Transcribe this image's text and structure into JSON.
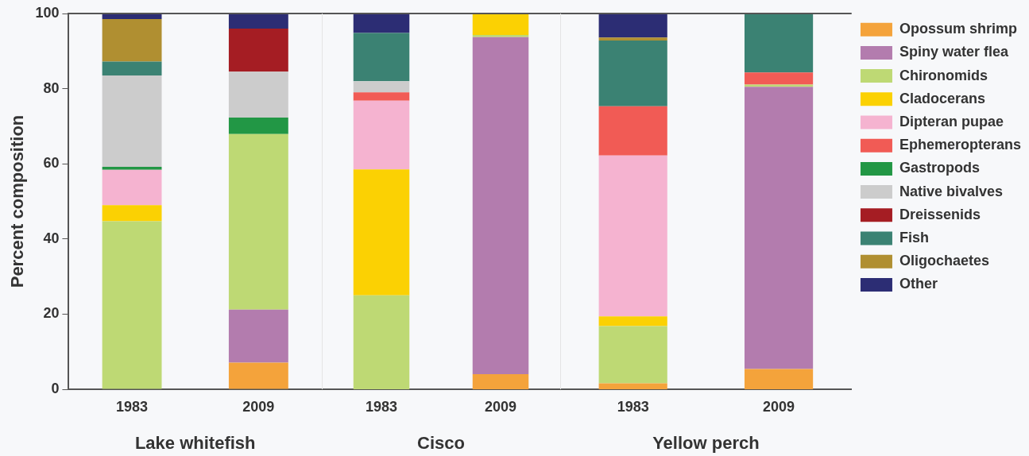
{
  "chart_data": [
    {
      "type": "bar",
      "stacked": true,
      "xlabel": "Lake whitefish",
      "ylabel": "Percent composition",
      "categories": [
        "1983",
        "2009"
      ],
      "ylim": [
        0,
        100
      ],
      "yticks": [
        0,
        20,
        40,
        60,
        80,
        100
      ],
      "grid": false,
      "legend": false,
      "series": [
        {
          "color": "#f4a33b",
          "values": [
            null,
            7.1
          ]
        },
        {
          "color": "#b37cae",
          "values": [
            null,
            14.1
          ]
        },
        {
          "color": "#bed974",
          "values": [
            44.7,
            46.7
          ]
        },
        {
          "color": "#fbd103",
          "values": [
            4.3,
            null
          ]
        },
        {
          "color": "#f5b3d0",
          "values": [
            9.4,
            null
          ]
        },
        {
          "color": "#f15b55",
          "values": [
            null,
            null
          ]
        },
        {
          "color": "#229745",
          "values": [
            0.8,
            4.4
          ]
        },
        {
          "color": "#cccccc",
          "values": [
            24.3,
            12.2
          ]
        },
        {
          "color": "#a51d23",
          "values": [
            null,
            11.5
          ]
        },
        {
          "color": "#3b8273",
          "values": [
            3.7,
            null
          ]
        },
        {
          "color": "#b08f31",
          "values": [
            11.3,
            null
          ]
        },
        {
          "color": "#2c2d74",
          "values": [
            1.5,
            4.0
          ]
        }
      ]
    },
    {
      "type": "bar",
      "stacked": true,
      "xlabel": "Cisco",
      "categories": [
        "1983",
        "2009"
      ],
      "ylim": [
        0,
        100
      ],
      "yticks": [
        0,
        20,
        40,
        60,
        80,
        100
      ],
      "tick_labels": "x",
      "grid": false,
      "legend": false,
      "series": [
        {
          "color": "#f4a33b",
          "values": [
            null,
            4.0
          ]
        },
        {
          "color": "#b37cae",
          "values": [
            null,
            89.7
          ]
        },
        {
          "color": "#bed974",
          "values": [
            25.0,
            0.6
          ]
        },
        {
          "color": "#fbd103",
          "values": [
            33.5,
            5.7
          ]
        },
        {
          "color": "#f5b3d0",
          "values": [
            18.3,
            null
          ]
        },
        {
          "color": "#f15b55",
          "values": [
            2.2,
            null
          ]
        },
        {
          "color": "#229745",
          "values": [
            null,
            null
          ]
        },
        {
          "color": "#cccccc",
          "values": [
            3.0,
            null
          ]
        },
        {
          "color": "#a51d23",
          "values": [
            null,
            null
          ]
        },
        {
          "color": "#3b8273",
          "values": [
            12.8,
            null
          ]
        },
        {
          "color": "#b08f31",
          "values": [
            null,
            null
          ]
        },
        {
          "color": "#2c2d74",
          "values": [
            5.2,
            null
          ]
        }
      ]
    },
    {
      "type": "bar",
      "stacked": true,
      "xlabel": "Yellow perch",
      "categories": [
        "1983",
        "2009"
      ],
      "ylim": [
        0,
        100
      ],
      "yticks": [
        0,
        20,
        40,
        60,
        80,
        100
      ],
      "tick_labels": "x",
      "grid": false,
      "legend": "right",
      "series": [
        {
          "name": "Opossum shrimp",
          "color": "#f4a33b",
          "values": [
            1.6,
            5.4
          ]
        },
        {
          "name": "Spiny water flea",
          "color": "#b37cae",
          "values": [
            null,
            75.1
          ]
        },
        {
          "name": "Chironomids",
          "color": "#bed974",
          "values": [
            15.2,
            0.6
          ]
        },
        {
          "name": "Cladocerans",
          "color": "#fbd103",
          "values": [
            2.6,
            null
          ]
        },
        {
          "name": "Dipteran pupae",
          "color": "#f5b3d0",
          "values": [
            42.8,
            null
          ]
        },
        {
          "name": "Ephemeropterans",
          "color": "#f15b55",
          "values": [
            13.1,
            3.2
          ]
        },
        {
          "name": "Gastropods",
          "color": "#229745",
          "values": [
            null,
            null
          ]
        },
        {
          "name": "Native bivalves",
          "color": "#cccccc",
          "values": [
            null,
            null
          ]
        },
        {
          "name": "Dreissenids",
          "color": "#a51d23",
          "values": [
            null,
            null
          ]
        },
        {
          "name": "Fish",
          "color": "#3b8273",
          "values": [
            17.5,
            15.7
          ]
        },
        {
          "name": "Oligochaetes",
          "color": "#b08f31",
          "values": [
            0.8,
            null
          ]
        },
        {
          "name": "Other",
          "color": "#2c2d74",
          "values": [
            6.4,
            null
          ]
        }
      ]
    }
  ]
}
